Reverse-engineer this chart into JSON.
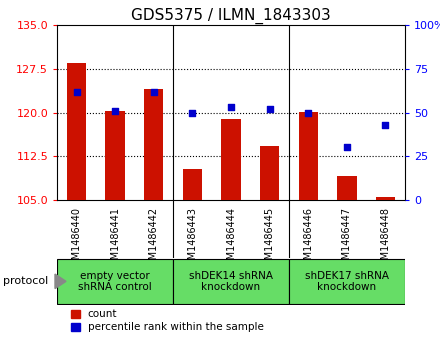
{
  "title": "GDS5375 / ILMN_1843303",
  "samples": [
    "GSM1486440",
    "GSM1486441",
    "GSM1486442",
    "GSM1486443",
    "GSM1486444",
    "GSM1486445",
    "GSM1486446",
    "GSM1486447",
    "GSM1486448"
  ],
  "counts": [
    128.5,
    120.2,
    124.0,
    110.2,
    118.8,
    114.2,
    120.1,
    109.0,
    105.5
  ],
  "percentiles": [
    62,
    51,
    62,
    50,
    53,
    52,
    50,
    30,
    43
  ],
  "ymin": 105,
  "ymax": 135,
  "y_ticks": [
    105,
    112.5,
    120,
    127.5,
    135
  ],
  "y2min": 0,
  "y2max": 100,
  "y2_ticks": [
    0,
    25,
    50,
    75,
    100
  ],
  "bar_color": "#cc1100",
  "dot_color": "#0000cc",
  "groups": [
    {
      "label": "empty vector\nshRNA control",
      "start": 0,
      "end": 3
    },
    {
      "label": "shDEK14 shRNA\nknockdown",
      "start": 3,
      "end": 6
    },
    {
      "label": "shDEK17 shRNA\nknockdown",
      "start": 6,
      "end": 9
    }
  ],
  "group_color": "#66dd66",
  "xtick_bg": "#d0d0d0",
  "protocol_label": "protocol",
  "legend_count_label": "count",
  "legend_pct_label": "percentile rank within the sample",
  "bar_width": 0.5,
  "title_fontsize": 11,
  "tick_fontsize": 8,
  "xtick_fontsize": 7,
  "group_fontsize": 7.5
}
